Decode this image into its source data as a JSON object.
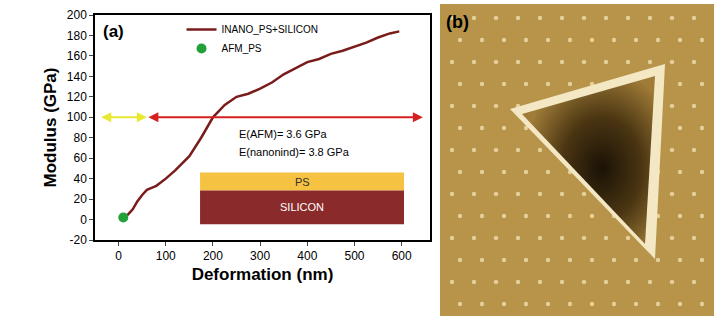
{
  "chart_data": {
    "type": "line",
    "label": "(a)",
    "x_label": "Deformation (nm)",
    "y_label": "Modulus (GPa)",
    "series": [
      {
        "name": "INANO_PS+SILICON",
        "type": "line",
        "color": "#7b1c1c",
        "x": [
          10,
          20,
          30,
          40,
          50,
          60,
          70,
          80,
          100,
          120,
          150,
          175,
          200,
          225,
          250,
          275,
          300,
          325,
          350,
          375,
          400,
          425,
          450,
          475,
          500,
          525,
          550,
          575,
          595
        ],
        "values": [
          2,
          5,
          10,
          18,
          24,
          29,
          31,
          33,
          40,
          48,
          62,
          80,
          100,
          112,
          120,
          123,
          128,
          134,
          142,
          148,
          154,
          157,
          162,
          165,
          169,
          173,
          178,
          182,
          184
        ]
      },
      {
        "name": "AFM_PS",
        "type": "scatter",
        "color": "#22a03a",
        "marker": "circle",
        "x": [
          10
        ],
        "values": [
          2
        ]
      }
    ],
    "xlim": [
      -50,
      660
    ],
    "xticks": [
      0,
      100,
      200,
      300,
      400,
      500,
      600
    ],
    "ylim": [
      -20,
      200
    ],
    "yticks": [
      -20,
      0,
      20,
      40,
      60,
      80,
      100,
      120,
      140,
      160,
      180,
      200
    ],
    "legend": "upper left",
    "annotations": [
      "E(AFM)= 3.6 GPa",
      "E(nanonind)= 3.8 GPa"
    ],
    "arrows": [
      {
        "from": -40,
        "to": 60,
        "y": 100,
        "color": "#e8e830"
      },
      {
        "from": 60,
        "to": 645,
        "y": 100,
        "color": "#d42020"
      }
    ],
    "inset": {
      "layers": [
        {
          "label": "PS",
          "color": "#f5c242"
        },
        {
          "label": "SILICON",
          "color": "#8b2a2a"
        }
      ]
    }
  },
  "image_panel": {
    "label": "(b)"
  }
}
